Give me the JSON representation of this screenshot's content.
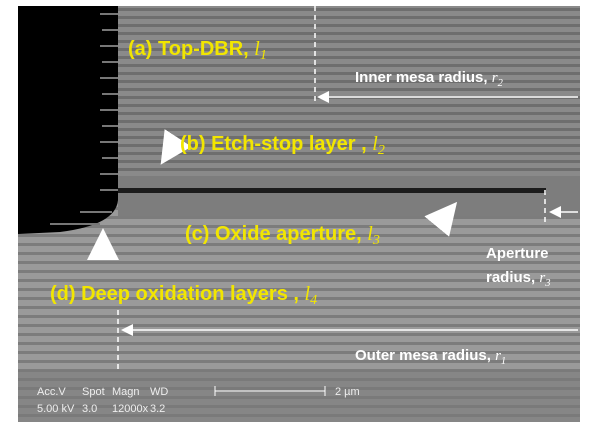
{
  "labels": {
    "a": {
      "text": "(a) Top-DBR,",
      "symbol": "l",
      "subscript": "1"
    },
    "inner": {
      "text": "Inner mesa radius,",
      "symbol": "r",
      "subscript": "2"
    },
    "b": {
      "text": "(b) Etch-stop layer ,",
      "symbol": "l",
      "subscript": "2"
    },
    "c": {
      "text": "(c) Oxide aperture,",
      "symbol": "l",
      "subscript": "3"
    },
    "aperture": {
      "line1": "Aperture",
      "text": "radius,",
      "symbol": "r",
      "subscript": "3"
    },
    "d": {
      "text": "(d) Deep oxidation layers ,",
      "symbol": "l",
      "subscript": "4"
    },
    "outer": {
      "text": "Outer mesa radius,",
      "symbol": "r",
      "subscript": "1"
    }
  },
  "info": {
    "headers": [
      "Acc.V",
      "Spot",
      "Magn",
      "WD"
    ],
    "values": [
      "5.00 kV",
      "3.0",
      "12000x",
      "3.2"
    ],
    "scale": "2 µm"
  }
}
